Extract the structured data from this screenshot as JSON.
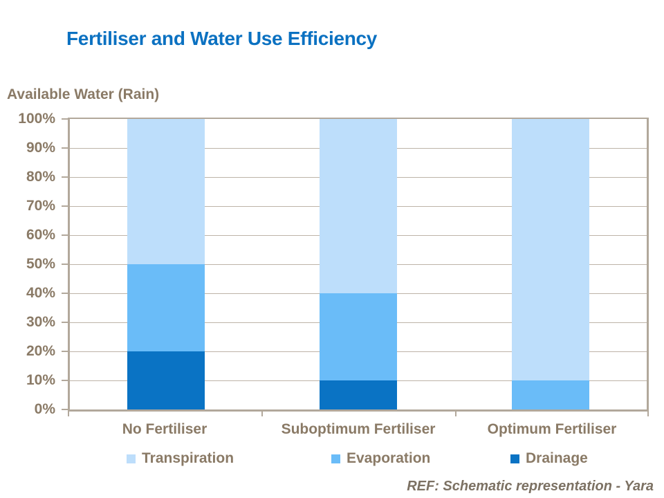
{
  "slide": {
    "title": "Fertiliser and Water Use Efficiency",
    "footnote": "REF: Schematic representation - Yara"
  },
  "chart_data": {
    "type": "bar",
    "stacked": true,
    "title": "Fertiliser and Water Use Efficiency",
    "y_axis_title": "Available Water (Rain)",
    "categories": [
      "No Fertiliser",
      "Suboptimum Fertiliser",
      "Optimum Fertiliser"
    ],
    "series": [
      {
        "name": "Transpiration",
        "color": "#BDDEFB",
        "values": [
          50,
          60,
          90
        ]
      },
      {
        "name": "Evaporation",
        "color": "#6ABCF8",
        "values": [
          30,
          30,
          10
        ]
      },
      {
        "name": "Drainage",
        "color": "#0A73C4",
        "values": [
          20,
          10,
          0
        ]
      }
    ],
    "ylim": [
      0,
      100
    ],
    "y_tick_labels": [
      "0%",
      "10%",
      "20%",
      "30%",
      "40%",
      "50%",
      "60%",
      "70%",
      "80%",
      "90%",
      "100%"
    ],
    "grid": true,
    "legend": [
      "Transpiration",
      "Evaporation",
      "Drainage"
    ],
    "legend_position": "bottom",
    "footnote": "REF: Schematic representation - Yara"
  },
  "colors": {
    "title": "#0B71C1",
    "text": "#8A7A66",
    "axis": "#B2A89B",
    "gridline": "#BDB3A7",
    "footnote": "#7C7163"
  }
}
